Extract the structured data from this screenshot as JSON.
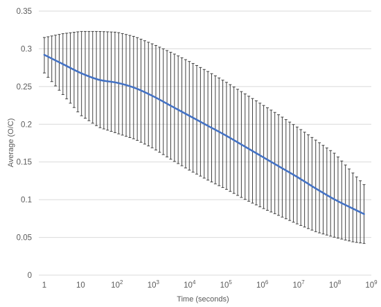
{
  "chart_data": {
    "type": "line",
    "xlabel": "Time (seconds)",
    "ylabel": "Average (O/C)",
    "x_scale": "log",
    "xlim": [
      1,
      1000000000
    ],
    "ylim": [
      0,
      0.35
    ],
    "y_ticks": [
      "0",
      "0.05",
      "0.1",
      "0.15",
      "0.2",
      "0.25",
      "0.3",
      "0.35"
    ],
    "x_ticks": [
      {
        "base": "1",
        "exp": ""
      },
      {
        "base": "10",
        "exp": ""
      },
      {
        "base": "10",
        "exp": "2"
      },
      {
        "base": "10",
        "exp": "3"
      },
      {
        "base": "10",
        "exp": "4"
      },
      {
        "base": "10",
        "exp": "5"
      },
      {
        "base": "10",
        "exp": "6"
      },
      {
        "base": "10",
        "exp": "7"
      },
      {
        "base": "10",
        "exp": "8"
      },
      {
        "base": "10",
        "exp": "9"
      }
    ],
    "grid": "horizontal",
    "line_color": "#4472c4",
    "errorbar_color": "#404040",
    "series": [
      {
        "log10_x": [
          0,
          0.5,
          1,
          1.5,
          2,
          2.5,
          3,
          3.5,
          4,
          4.5,
          5,
          5.5,
          6,
          6.5,
          7,
          7.5,
          8,
          8.5,
          8.8
        ],
        "y": [
          0.292,
          0.28,
          0.268,
          0.259,
          0.255,
          0.248,
          0.237,
          0.224,
          0.211,
          0.198,
          0.185,
          0.171,
          0.157,
          0.143,
          0.129,
          0.114,
          0.1,
          0.088,
          0.081
        ],
        "upper": [
          0.315,
          0.32,
          0.323,
          0.323,
          0.322,
          0.316,
          0.306,
          0.295,
          0.283,
          0.27,
          0.256,
          0.241,
          0.226,
          0.211,
          0.195,
          0.178,
          0.161,
          0.135,
          0.12
        ],
        "lower": [
          0.268,
          0.24,
          0.212,
          0.196,
          0.188,
          0.18,
          0.168,
          0.153,
          0.139,
          0.126,
          0.114,
          0.101,
          0.089,
          0.078,
          0.067,
          0.057,
          0.05,
          0.044,
          0.042
        ]
      }
    ]
  }
}
